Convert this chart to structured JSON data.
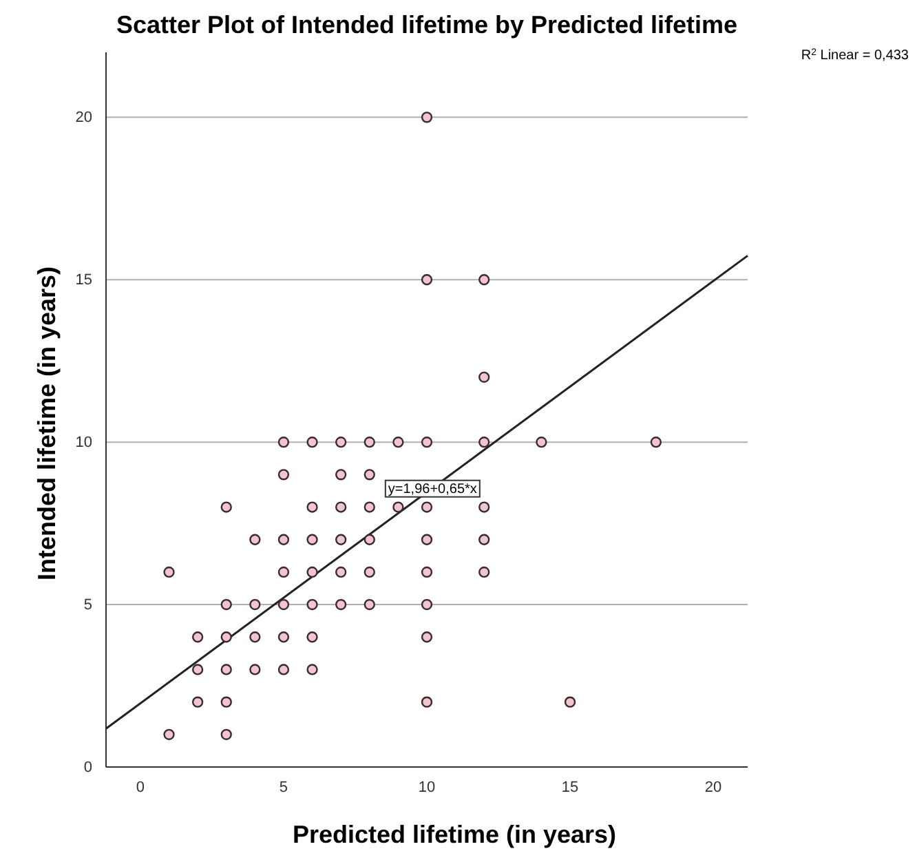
{
  "chart_data": {
    "type": "scatter",
    "title": "Scatter Plot of Intended lifetime by Predicted lifetime",
    "xlabel": "Predicted lifetime (in years)",
    "ylabel": "Intended lifetime (in years)",
    "xlim": [
      -1.2,
      21.2
    ],
    "ylim": [
      0,
      22
    ],
    "xticks": [
      0,
      5,
      10,
      15,
      20
    ],
    "yticks": [
      0,
      5,
      10,
      15,
      20
    ],
    "grid": "y",
    "annotations": [
      "R$^{2}$ Linear = 0,433",
      {
        "text": "y=1,96+0,65*x",
        "x": 10.2,
        "y": 8.59
      }
    ],
    "series": [
      {
        "marker": "circle",
        "color": "#f2c4cf",
        "x": [
          5,
          6,
          7,
          8,
          9,
          10,
          12,
          14,
          18,
          5,
          7,
          8,
          3,
          6,
          7,
          8,
          9,
          10,
          12,
          4,
          5,
          6,
          7,
          8,
          10,
          12,
          1,
          5,
          6,
          7,
          8,
          10,
          12,
          3,
          4,
          5,
          6,
          7,
          8,
          10,
          2,
          3,
          4,
          5,
          6,
          10,
          2,
          3,
          4,
          5,
          6,
          2,
          3,
          10,
          15,
          1,
          3,
          12,
          10,
          12,
          10
        ],
        "values": [
          10,
          10,
          10,
          10,
          10,
          10,
          10,
          10,
          10,
          9,
          9,
          9,
          8,
          8,
          8,
          8,
          8,
          8,
          8,
          7,
          7,
          7,
          7,
          7,
          7,
          7,
          6,
          6,
          6,
          6,
          6,
          6,
          6,
          5,
          5,
          5,
          5,
          5,
          5,
          5,
          4,
          4,
          4,
          4,
          4,
          4,
          3,
          3,
          3,
          3,
          3,
          2,
          2,
          2,
          2,
          1,
          1,
          12,
          15,
          15,
          20
        ]
      },
      {
        "type": "line",
        "color": "#222222",
        "x": [
          -1.2,
          21.2
        ],
        "values": [
          1.18,
          15.74
        ]
      }
    ]
  }
}
